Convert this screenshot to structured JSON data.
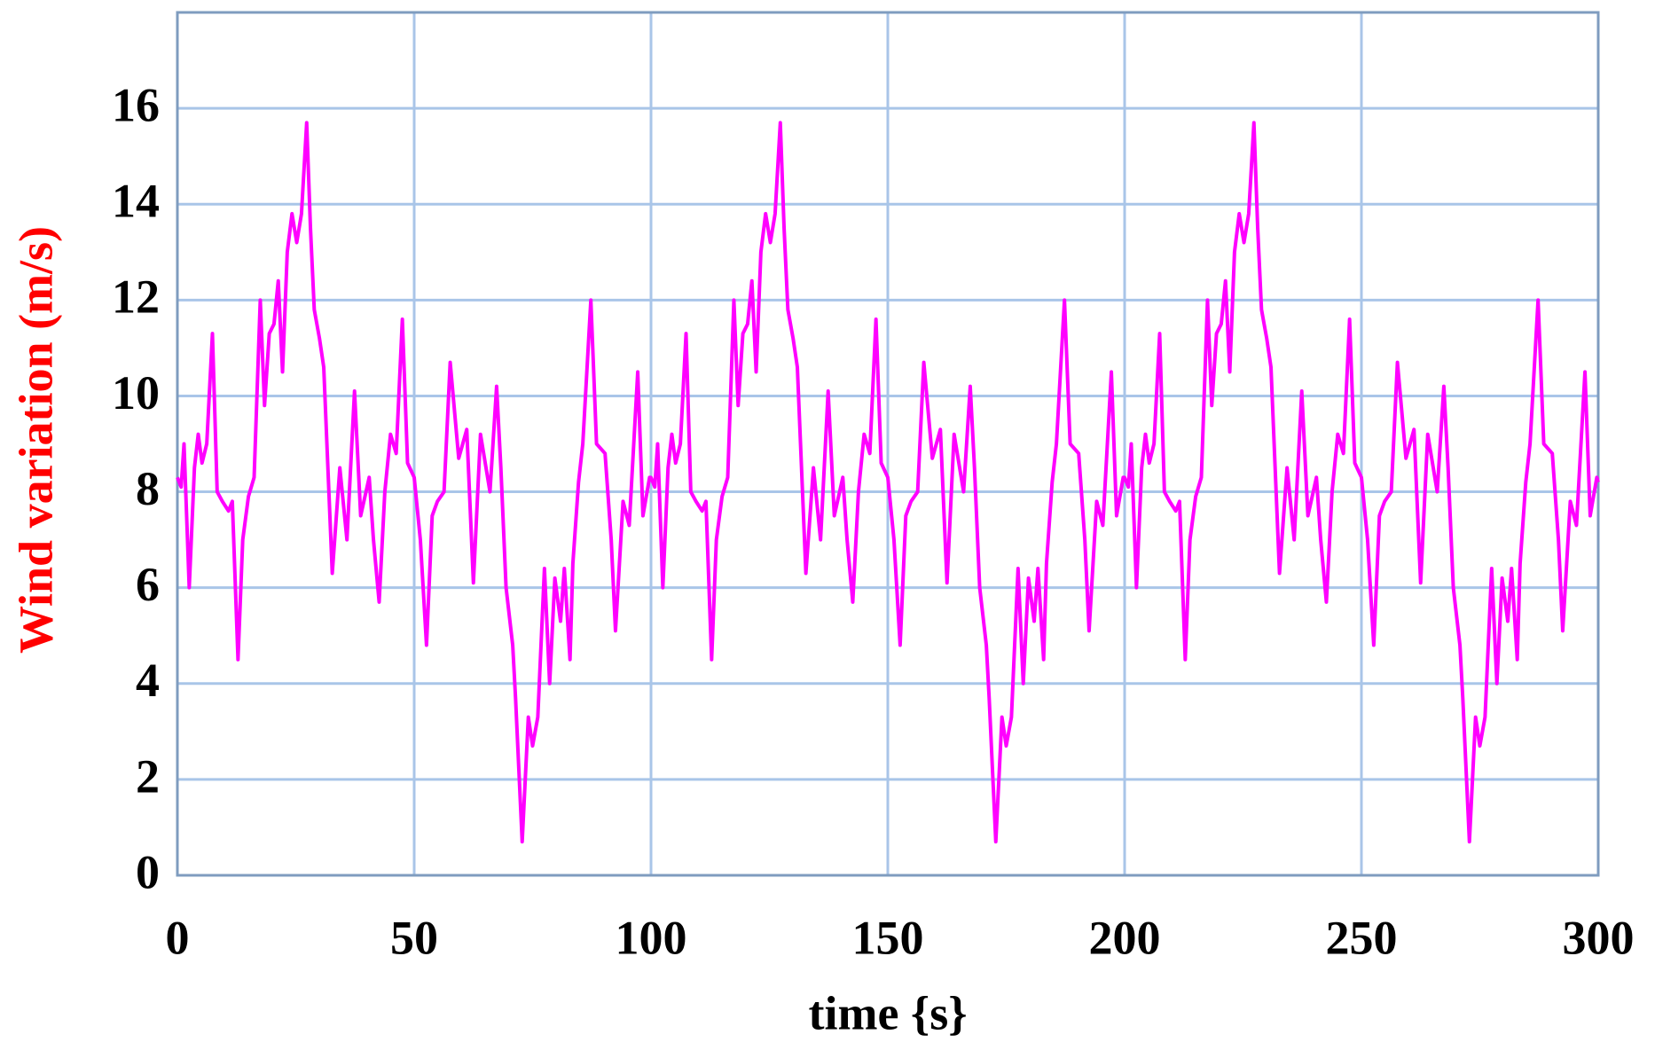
{
  "chart_data": {
    "type": "line",
    "xlabel": "time {s}",
    "ylabel": "Wind variation (m/s)",
    "xlim": [
      0,
      300
    ],
    "xticks": [
      0,
      50,
      100,
      150,
      200,
      250,
      300
    ],
    "ylim": [
      0,
      18
    ],
    "yticks": [
      0,
      2,
      4,
      6,
      8,
      10,
      12,
      14,
      16
    ],
    "grid": true,
    "x": [
      0,
      0.8,
      1.4,
      2.5,
      3.6,
      4.4,
      5.2,
      6.2,
      7.4,
      8.4,
      9.5,
      10.8,
      11.6,
      12.8,
      13.8,
      15.0,
      16.2,
      17.5,
      18.4,
      19.4,
      20.4,
      21.3,
      22.2,
      23.2,
      24.2,
      25.2,
      26.2,
      27.3,
      28.1,
      28.9,
      30.0,
      30.9,
      32.7,
      34.3,
      35.8,
      37.4,
      38.7,
      40.5,
      41.4,
      42.6,
      43.8,
      45.0,
      46.2,
      47.5,
      48.6,
      50.0,
      51.3,
      52.6,
      53.8,
      54.9,
      56.3,
      57.6,
      59.4,
      61.1,
      62.5,
      64.0,
      66.0,
      67.4,
      68.3,
      69.4,
      70.8,
      71.4,
      72.8,
      74.1,
      75.0,
      76.1,
      77.5,
      78.6,
      79.7,
      80.9,
      81.7,
      82.9,
      83.5,
      84.7,
      85.6,
      87.3,
      88.5,
      90.3,
      91.6,
      92.5,
      94.1,
      95.4,
      97.2,
      98.3,
      99.7,
      100,
      100.8,
      101.4,
      102.5,
      103.6,
      104.4,
      105.2,
      106.2,
      107.4,
      108.4,
      109.5,
      110.8,
      111.6,
      112.8,
      113.8,
      115.0,
      116.2,
      117.5,
      118.4,
      119.4,
      120.4,
      121.3,
      122.2,
      123.2,
      124.2,
      125.2,
      126.2,
      127.3,
      128.1,
      128.9,
      130.0,
      130.9,
      132.7,
      134.3,
      135.8,
      137.4,
      138.7,
      140.5,
      141.4,
      142.6,
      143.8,
      145.0,
      146.2,
      147.5,
      148.6,
      150.0,
      151.3,
      152.6,
      153.8,
      154.9,
      156.3,
      157.6,
      159.4,
      161.1,
      162.5,
      164.0,
      166.0,
      167.4,
      168.3,
      169.4,
      170.8,
      171.4,
      172.8,
      174.1,
      175.0,
      176.1,
      177.5,
      178.6,
      179.7,
      180.9,
      181.7,
      182.9,
      183.5,
      184.7,
      185.6,
      187.3,
      188.5,
      190.3,
      191.6,
      192.5,
      194.1,
      195.4,
      197.2,
      198.3,
      199.7,
      200,
      200.8,
      201.4,
      202.5,
      203.6,
      204.4,
      205.2,
      206.2,
      207.4,
      208.4,
      209.5,
      210.8,
      211.6,
      212.8,
      213.8,
      215.0,
      216.2,
      217.5,
      218.4,
      219.4,
      220.4,
      221.3,
      222.2,
      223.2,
      224.2,
      225.2,
      226.2,
      227.3,
      228.1,
      228.9,
      230.0,
      230.9,
      232.7,
      234.3,
      235.8,
      237.4,
      238.7,
      240.5,
      241.4,
      242.6,
      243.8,
      245.0,
      246.2,
      247.5,
      248.6,
      250.0,
      251.3,
      252.6,
      253.8,
      254.9,
      256.3,
      257.6,
      259.4,
      261.1,
      262.5,
      264.0,
      266.0,
      267.4,
      268.3,
      269.4,
      270.8,
      271.4,
      272.8,
      274.1,
      275.0,
      276.1,
      277.5,
      278.6,
      279.7,
      280.9,
      281.7,
      282.9,
      283.5,
      284.7,
      285.6,
      287.3,
      288.5,
      290.3,
      291.6,
      292.5,
      294.1,
      295.4,
      297.2,
      298.3,
      299.7,
      300
    ],
    "series": [
      {
        "color": "#ff00ff",
        "values": [
          8.3,
          8.1,
          9.0,
          6.0,
          8.5,
          9.2,
          8.6,
          9.0,
          11.3,
          8.0,
          7.8,
          7.6,
          7.8,
          4.5,
          7.0,
          7.9,
          8.3,
          12.0,
          9.8,
          11.3,
          11.5,
          12.4,
          10.5,
          13.0,
          13.8,
          13.2,
          13.8,
          15.7,
          13.5,
          11.8,
          11.2,
          10.6,
          6.3,
          8.5,
          7.0,
          10.1,
          7.5,
          8.3,
          7.0,
          5.7,
          8.0,
          9.2,
          8.8,
          11.6,
          8.6,
          8.3,
          7.0,
          4.8,
          7.5,
          7.8,
          8.0,
          10.7,
          8.7,
          9.3,
          6.1,
          9.2,
          8.0,
          10.2,
          8.5,
          6.0,
          4.8,
          3.7,
          0.7,
          3.3,
          2.7,
          3.3,
          6.4,
          4.0,
          6.2,
          5.3,
          6.4,
          4.5,
          6.5,
          8.2,
          9.0,
          12.0,
          9.0,
          8.8,
          7.0,
          5.1,
          7.8,
          7.3,
          10.5,
          7.5,
          8.3,
          8.3,
          8.1,
          9.0,
          6.0,
          8.5,
          9.2,
          8.6,
          9.0,
          11.3,
          8.0,
          7.8,
          7.6,
          7.8,
          4.5,
          7.0,
          7.9,
          8.3,
          12.0,
          9.8,
          11.3,
          11.5,
          12.4,
          10.5,
          13.0,
          13.8,
          13.2,
          13.8,
          15.7,
          13.5,
          11.8,
          11.2,
          10.6,
          6.3,
          8.5,
          7.0,
          10.1,
          7.5,
          8.3,
          7.0,
          5.7,
          8.0,
          9.2,
          8.8,
          11.6,
          8.6,
          8.3,
          7.0,
          4.8,
          7.5,
          7.8,
          8.0,
          10.7,
          8.7,
          9.3,
          6.1,
          9.2,
          8.0,
          10.2,
          8.5,
          6.0,
          4.8,
          3.7,
          0.7,
          3.3,
          2.7,
          3.3,
          6.4,
          4.0,
          6.2,
          5.3,
          6.4,
          4.5,
          6.5,
          8.2,
          9.0,
          12.0,
          9.0,
          8.8,
          7.0,
          5.1,
          7.8,
          7.3,
          10.5,
          7.5,
          8.3,
          8.3,
          8.1,
          9.0,
          6.0,
          8.5,
          9.2,
          8.6,
          9.0,
          11.3,
          8.0,
          7.8,
          7.6,
          7.8,
          4.5,
          7.0,
          7.9,
          8.3,
          12.0,
          9.8,
          11.3,
          11.5,
          12.4,
          10.5,
          13.0,
          13.8,
          13.2,
          13.8,
          15.7,
          13.5,
          11.8,
          11.2,
          10.6,
          6.3,
          8.5,
          7.0,
          10.1,
          7.5,
          8.3,
          7.0,
          5.7,
          8.0,
          9.2,
          8.8,
          11.6,
          8.6,
          8.3,
          7.0,
          4.8,
          7.5,
          7.8,
          8.0,
          10.7,
          8.7,
          9.3,
          6.1,
          9.2,
          8.0,
          10.2,
          8.5,
          6.0,
          4.8,
          3.7,
          0.7,
          3.3,
          2.7,
          3.3,
          6.4,
          4.0,
          6.2,
          5.3,
          6.4,
          4.5,
          6.5,
          8.2,
          9.0,
          12.0,
          9.0,
          8.8,
          7.0,
          5.1,
          7.8,
          7.3,
          10.5,
          7.5,
          8.3,
          8.2
        ]
      }
    ]
  }
}
